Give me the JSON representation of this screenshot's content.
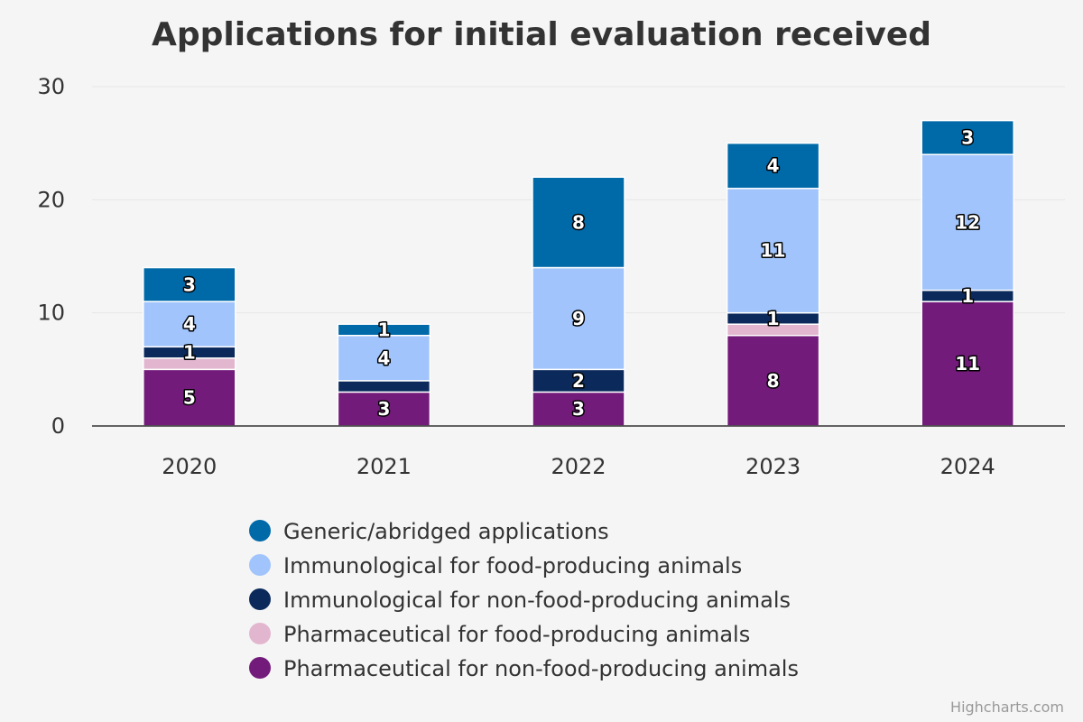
{
  "chart_data": {
    "type": "bar",
    "stacked": true,
    "title": "Applications for initial evaluation received",
    "categories": [
      "2020",
      "2021",
      "2022",
      "2023",
      "2024"
    ],
    "ylim": [
      0,
      30
    ],
    "yticks": [
      0,
      10,
      20,
      30
    ],
    "grid": true,
    "legend_position": "bottom-center",
    "series": [
      {
        "name": "Pharmaceutical for non-food-producing animals",
        "color": "#731b7a",
        "values": [
          5,
          3,
          3,
          8,
          11
        ]
      },
      {
        "name": "Pharmaceutical for food-producing animals",
        "color": "#e2b6cf",
        "values": [
          1,
          0,
          0,
          1,
          0
        ]
      },
      {
        "name": "Immunological for non-food-producing animals",
        "color": "#0b2a5b",
        "values": [
          1,
          1,
          2,
          1,
          1
        ]
      },
      {
        "name": "Immunological for food-producing animals",
        "color": "#a0c4fb",
        "values": [
          4,
          4,
          9,
          11,
          12
        ]
      },
      {
        "name": "Generic/abridged applications",
        "color": "#0069a8",
        "values": [
          3,
          1,
          8,
          4,
          3
        ]
      }
    ],
    "data_labels": [
      {
        "category": "2020",
        "label": "5",
        "at": 2.5
      },
      {
        "category": "2020",
        "label": "1",
        "at": 6.5
      },
      {
        "category": "2020",
        "label": "4",
        "at": 9.0
      },
      {
        "category": "2020",
        "label": "3",
        "at": 12.5
      },
      {
        "category": "2021",
        "label": "3",
        "at": 1.5
      },
      {
        "category": "2021",
        "label": "4",
        "at": 6.0
      },
      {
        "category": "2021",
        "label": "1",
        "at": 8.5
      },
      {
        "category": "2022",
        "label": "3",
        "at": 1.5
      },
      {
        "category": "2022",
        "label": "2",
        "at": 4.0
      },
      {
        "category": "2022",
        "label": "9",
        "at": 9.5
      },
      {
        "category": "2022",
        "label": "8",
        "at": 18.0
      },
      {
        "category": "2023",
        "label": "8",
        "at": 4.0
      },
      {
        "category": "2023",
        "label": "1",
        "at": 9.5
      },
      {
        "category": "2023",
        "label": "11",
        "at": 15.5
      },
      {
        "category": "2023",
        "label": "4",
        "at": 23.0
      },
      {
        "category": "2024",
        "label": "11",
        "at": 5.5
      },
      {
        "category": "2024",
        "label": "1",
        "at": 11.5
      },
      {
        "category": "2024",
        "label": "12",
        "at": 18.0
      },
      {
        "category": "2024",
        "label": "3",
        "at": 25.5
      }
    ],
    "legend_items": [
      {
        "name": "Generic/abridged applications",
        "color": "#0069a8"
      },
      {
        "name": "Immunological for food-producing animals",
        "color": "#a0c4fb"
      },
      {
        "name": "Immunological for non-food-producing animals",
        "color": "#0b2a5b"
      },
      {
        "name": "Pharmaceutical for food-producing animals",
        "color": "#e2b6cf"
      },
      {
        "name": "Pharmaceutical for non-food-producing animals",
        "color": "#731b7a"
      }
    ]
  },
  "credits": "Highcharts.com"
}
